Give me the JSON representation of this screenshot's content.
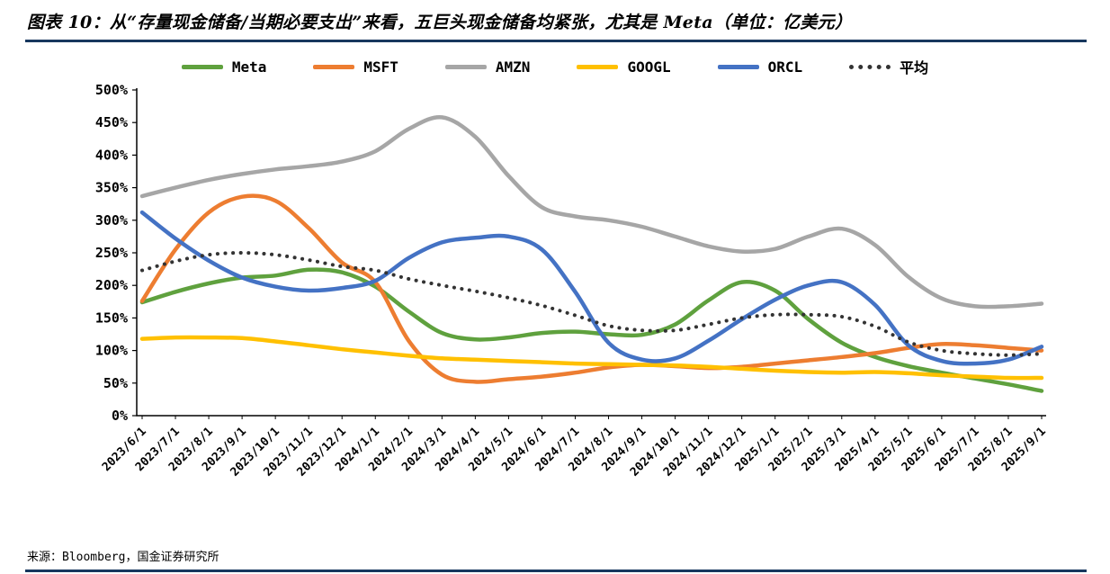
{
  "header": {
    "title": "图表 10：从“存量现金储备/当期必要支出”来看，五巨头现金储备均紧张，尤其是 Meta（单位：亿美元）"
  },
  "footer": {
    "source": "来源：Bloomberg，国金证券研究所"
  },
  "colors": {
    "divider": "#17375E",
    "axis": "#000000"
  },
  "chart_data": {
    "type": "line",
    "title": "存量现金储备/当期必要支出",
    "legend_position": "top",
    "grid": false,
    "ylim": [
      0,
      500
    ],
    "ytick_step": 50,
    "ytick_labels": [
      "0%",
      "50%",
      "100%",
      "150%",
      "200%",
      "250%",
      "300%",
      "350%",
      "400%",
      "450%",
      "500%"
    ],
    "categories": [
      "2023/6/1",
      "2023/7/1",
      "2023/8/1",
      "2023/9/1",
      "2023/10/1",
      "2023/11/1",
      "2023/12/1",
      "2024/1/1",
      "2024/2/1",
      "2024/3/1",
      "2024/4/1",
      "2024/5/1",
      "2024/6/1",
      "2024/7/1",
      "2024/8/1",
      "2024/9/1",
      "2024/10/1",
      "2024/11/1",
      "2024/12/1",
      "2025/1/1",
      "2025/2/1",
      "2025/3/1",
      "2025/4/1",
      "2025/5/1",
      "2025/6/1",
      "2025/7/1",
      "2025/8/1",
      "2025/9/1"
    ],
    "series": [
      {
        "name": "Meta",
        "color": "#5FA13E",
        "style": "solid",
        "values": [
          174,
          190,
          203,
          212,
          215,
          224,
          220,
          198,
          160,
          127,
          117,
          120,
          127,
          129,
          125,
          124,
          140,
          177,
          205,
          192,
          148,
          112,
          90,
          76,
          66,
          57,
          48,
          38
        ]
      },
      {
        "name": "MSFT",
        "color": "#ED7D31",
        "style": "solid",
        "values": [
          176,
          255,
          312,
          336,
          330,
          288,
          235,
          205,
          115,
          63,
          52,
          56,
          60,
          66,
          74,
          78,
          76,
          73,
          75,
          80,
          85,
          90,
          96,
          104,
          110,
          108,
          104,
          100
        ]
      },
      {
        "name": "AMZN",
        "color": "#A6A6A6",
        "style": "solid",
        "values": [
          337,
          350,
          362,
          371,
          378,
          383,
          390,
          406,
          440,
          458,
          428,
          368,
          320,
          306,
          300,
          290,
          275,
          260,
          252,
          256,
          275,
          287,
          262,
          213,
          180,
          168,
          168,
          172
        ]
      },
      {
        "name": "GOOGL",
        "color": "#FFC000",
        "style": "solid",
        "values": [
          118,
          120,
          120,
          119,
          114,
          108,
          102,
          97,
          92,
          88,
          86,
          84,
          82,
          80,
          79,
          78,
          77,
          75,
          72,
          69,
          67,
          66,
          67,
          65,
          62,
          60,
          58,
          58
        ]
      },
      {
        "name": "ORCL",
        "color": "#4472C4",
        "style": "solid",
        "values": [
          312,
          272,
          238,
          212,
          198,
          192,
          196,
          207,
          242,
          266,
          273,
          275,
          255,
          190,
          112,
          86,
          88,
          115,
          148,
          178,
          200,
          205,
          170,
          108,
          84,
          80,
          86,
          106
        ]
      },
      {
        "name": "平均",
        "color": "#333333",
        "style": "dotted",
        "values": [
          223,
          237,
          247,
          250,
          247,
          239,
          229,
          223,
          210,
          200,
          191,
          181,
          169,
          154,
          138,
          131,
          131,
          140,
          150,
          155,
          155,
          152,
          137,
          113,
          100,
          95,
          93,
          95
        ]
      }
    ]
  }
}
